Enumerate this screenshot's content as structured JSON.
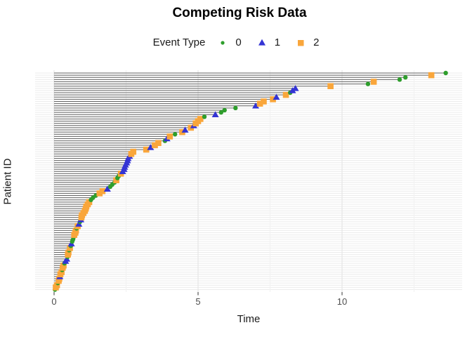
{
  "chart_data": {
    "type": "scatter",
    "title": "Competing Risk Data",
    "xlabel": "Time",
    "ylabel": "Patient ID",
    "legend": {
      "title": "Event Type",
      "position": "top",
      "entries": [
        {
          "label": "0",
          "marker": "circle",
          "color": "#2e9e2c"
        },
        {
          "label": "1",
          "marker": "triangle",
          "color": "#3434d4"
        },
        {
          "label": "2",
          "marker": "square",
          "color": "#f9a63b"
        }
      ]
    },
    "x_ticks": [
      0,
      5,
      10
    ],
    "x_minor_gridlines": [
      2.5,
      7.5,
      12.5
    ],
    "xlim": [
      -0.7,
      14.2
    ],
    "y_axis_note": "one unlabeled row per patient, sorted by event time",
    "grid": true,
    "style": {
      "segment_color": "#636363",
      "row_gridline_color": "#ececec",
      "major_gridline_color": "#e2e2e2",
      "minor_gridline_color": "#f1f1f1",
      "tick_color": "#333333",
      "tick_label_color": "#4d4d4d"
    },
    "patients": [
      {
        "time": 0.03,
        "event": 0
      },
      {
        "time": 0.06,
        "event": 2
      },
      {
        "time": 0.1,
        "event": 2
      },
      {
        "time": 0.13,
        "event": 0
      },
      {
        "time": 0.16,
        "event": 2
      },
      {
        "time": 0.18,
        "event": 2
      },
      {
        "time": 0.2,
        "event": 1
      },
      {
        "time": 0.22,
        "event": 2
      },
      {
        "time": 0.26,
        "event": 2
      },
      {
        "time": 0.28,
        "event": 0
      },
      {
        "time": 0.3,
        "event": 2
      },
      {
        "time": 0.33,
        "event": 2
      },
      {
        "time": 0.36,
        "event": 0
      },
      {
        "time": 0.4,
        "event": 1
      },
      {
        "time": 0.44,
        "event": 1
      },
      {
        "time": 0.47,
        "event": 0
      },
      {
        "time": 0.48,
        "event": 2
      },
      {
        "time": 0.5,
        "event": 2
      },
      {
        "time": 0.52,
        "event": 0
      },
      {
        "time": 0.55,
        "event": 2
      },
      {
        "time": 0.58,
        "event": 0
      },
      {
        "time": 0.6,
        "event": 1
      },
      {
        "time": 0.63,
        "event": 0
      },
      {
        "time": 0.66,
        "event": 0
      },
      {
        "time": 0.68,
        "event": 0
      },
      {
        "time": 0.7,
        "event": 2
      },
      {
        "time": 0.74,
        "event": 2
      },
      {
        "time": 0.76,
        "event": 2
      },
      {
        "time": 0.78,
        "event": 0
      },
      {
        "time": 0.82,
        "event": 2
      },
      {
        "time": 0.86,
        "event": 1
      },
      {
        "time": 0.9,
        "event": 0
      },
      {
        "time": 0.93,
        "event": 1
      },
      {
        "time": 0.95,
        "event": 2
      },
      {
        "time": 0.97,
        "event": 2
      },
      {
        "time": 1.02,
        "event": 2
      },
      {
        "time": 1.07,
        "event": 2
      },
      {
        "time": 1.1,
        "event": 2
      },
      {
        "time": 1.12,
        "event": 2
      },
      {
        "time": 1.17,
        "event": 2
      },
      {
        "time": 1.22,
        "event": 2
      },
      {
        "time": 1.28,
        "event": 0
      },
      {
        "time": 1.35,
        "event": 0
      },
      {
        "time": 1.45,
        "event": 0
      },
      {
        "time": 1.58,
        "event": 2
      },
      {
        "time": 1.68,
        "event": 2
      },
      {
        "time": 1.85,
        "event": 1
      },
      {
        "time": 1.95,
        "event": 0
      },
      {
        "time": 2.02,
        "event": 0
      },
      {
        "time": 2.1,
        "event": 0
      },
      {
        "time": 2.16,
        "event": 2
      },
      {
        "time": 2.2,
        "event": 0
      },
      {
        "time": 2.25,
        "event": 0
      },
      {
        "time": 2.32,
        "event": 2
      },
      {
        "time": 2.38,
        "event": 1
      },
      {
        "time": 2.43,
        "event": 1
      },
      {
        "time": 2.45,
        "event": 1
      },
      {
        "time": 2.48,
        "event": 1
      },
      {
        "time": 2.52,
        "event": 1
      },
      {
        "time": 2.55,
        "event": 1
      },
      {
        "time": 2.57,
        "event": 1
      },
      {
        "time": 2.62,
        "event": 1
      },
      {
        "time": 2.68,
        "event": 2
      },
      {
        "time": 2.75,
        "event": 2
      },
      {
        "time": 3.2,
        "event": 2
      },
      {
        "time": 3.35,
        "event": 1
      },
      {
        "time": 3.5,
        "event": 2
      },
      {
        "time": 3.62,
        "event": 2
      },
      {
        "time": 3.85,
        "event": 0
      },
      {
        "time": 3.92,
        "event": 1
      },
      {
        "time": 4.02,
        "event": 2
      },
      {
        "time": 4.2,
        "event": 0
      },
      {
        "time": 4.45,
        "event": 2
      },
      {
        "time": 4.55,
        "event": 1
      },
      {
        "time": 4.75,
        "event": 2
      },
      {
        "time": 4.85,
        "event": 1
      },
      {
        "time": 4.92,
        "event": 2
      },
      {
        "time": 5.0,
        "event": 2
      },
      {
        "time": 5.08,
        "event": 2
      },
      {
        "time": 5.22,
        "event": 0
      },
      {
        "time": 5.6,
        "event": 1
      },
      {
        "time": 5.8,
        "event": 0
      },
      {
        "time": 5.92,
        "event": 0
      },
      {
        "time": 6.3,
        "event": 0
      },
      {
        "time": 7.0,
        "event": 1
      },
      {
        "time": 7.15,
        "event": 2
      },
      {
        "time": 7.28,
        "event": 2
      },
      {
        "time": 7.6,
        "event": 2
      },
      {
        "time": 7.72,
        "event": 1
      },
      {
        "time": 8.05,
        "event": 2
      },
      {
        "time": 8.2,
        "event": 0
      },
      {
        "time": 8.28,
        "event": 1
      },
      {
        "time": 8.38,
        "event": 1
      },
      {
        "time": 9.6,
        "event": 2
      },
      {
        "time": 10.9,
        "event": 0
      },
      {
        "time": 11.1,
        "event": 2
      },
      {
        "time": 12.0,
        "event": 0
      },
      {
        "time": 12.2,
        "event": 0
      },
      {
        "time": 13.1,
        "event": 2
      },
      {
        "time": 13.6,
        "event": 0
      }
    ]
  }
}
